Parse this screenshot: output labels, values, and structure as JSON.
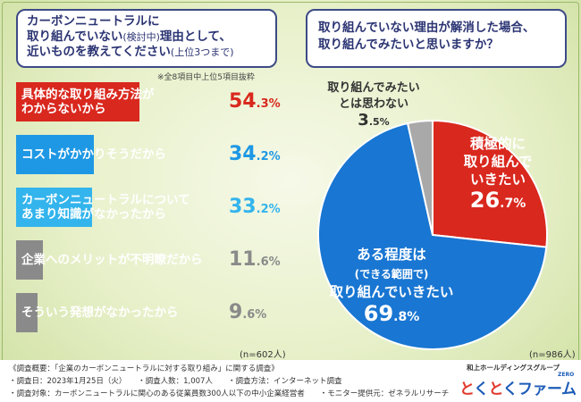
{
  "left_panel": {
    "question_line1": "カーボンニュートラルに",
    "question_line2a": "取り組んでいない",
    "question_line2b": "(検討中)",
    "question_line2c": "理由として、",
    "question_line3a": "近いものを教えてください",
    "question_line3b": "(上位3つまで)",
    "note": "※全8項目中上位5項目抜粋",
    "n_label": "(n=602人)"
  },
  "right_panel": {
    "question_line1": "取り組んでいない理由が解消した場合、",
    "question_line2": "取り組んでみたいと思いますか？",
    "n_label": "(n=986人)"
  },
  "colors": {
    "red": "#d9281e",
    "blue": "#1976d2",
    "mid_blue": "#1e98e4",
    "light_blue": "#33b4ec",
    "gray": "#8a8a8a",
    "pie_gray": "#a9a9a9",
    "navy": "#2b3473"
  },
  "chart_data": [
    {
      "type": "bar",
      "categories": [
        "具体的な取り組み方法が\nわからないから",
        "コストがかかりそうだから",
        "カーボンニュートラルについて\nあまり知識がなかったから",
        "企業へのメリットが不明瞭だから",
        "そういう発想がなかったから"
      ],
      "values": [
        54.3,
        34.2,
        33.2,
        11.6,
        9.6
      ],
      "value_labels": [
        {
          "int": "54",
          "dec": ".3%"
        },
        {
          "int": "34",
          "dec": ".2%"
        },
        {
          "int": "33",
          "dec": ".2%"
        },
        {
          "int": "11",
          "dec": ".6%"
        },
        {
          "int": "9",
          "dec": ".6%"
        }
      ],
      "bar_colors": [
        "#d9281e",
        "#1e98e4",
        "#33b4ec",
        "#8a8a8a",
        "#8a8a8a"
      ],
      "text_colors": [
        "#d9281e",
        "#1e98e4",
        "#33b4ec",
        "#8a8a8a",
        "#8a8a8a"
      ],
      "xlim": [
        0,
        100
      ],
      "orientation": "horizontal"
    },
    {
      "type": "pie",
      "slices": [
        {
          "label": "積極的に\n取り組んで\nいきたい",
          "value": 26.7,
          "int": "26",
          "dec": ".7%",
          "color": "#d9281e"
        },
        {
          "label": "ある程度は\n(できる範囲で)\n取り組んでいきたい",
          "value": 69.8,
          "int": "69",
          "dec": ".8%",
          "color": "#1976d2"
        },
        {
          "label": "取り組んでみたい\nとは思わない",
          "value": 3.5,
          "int": "3",
          "dec": ".5%",
          "color": "#a9a9a9"
        }
      ]
    }
  ],
  "footer": {
    "line1": "《調査概要：「企業のカーボンニュートラルに対する取り組み」に関する調査》",
    "line2": "・調査日：2023年1月25日（火）　　・調査人数：1,007人　　・調査方法：インターネット調査",
    "line3": "・調査対象：カーボンニュートラルに関心のある従業員数300人以下の中小企業経営者　　・モニター提供元：ゼネラルリサーチ",
    "brand_group": "和上ホールディングスグループ",
    "brand_to1": "と",
    "brand_ku1": "く",
    "brand_to2": "と",
    "brand_ku2": "く",
    "brand_farm": "ファーム",
    "brand_zero": "ZERO"
  }
}
